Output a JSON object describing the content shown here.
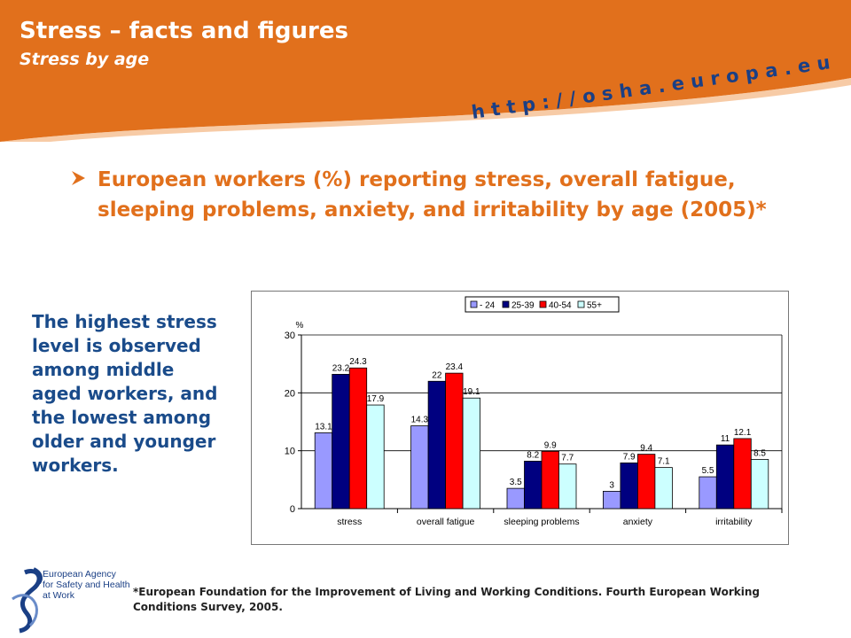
{
  "header": {
    "title": "Stress – facts and figures",
    "subtitle": "Stress by age",
    "url": "http://osha.europa.eu",
    "colors": {
      "band": "#e1701c",
      "url_text": "#1a3f85"
    }
  },
  "bullet": {
    "icon": "arrow-bullet-icon",
    "text": "European workers (%) reporting stress, overall fatigue, sleeping problems, anxiety, and irritability by age (2005)*"
  },
  "side_text": "The highest stress level is observed among middle aged workers, and the lowest among older and younger workers.",
  "footnote": "*European Foundation for the Improvement of Living and Working Conditions. Fourth European Working Conditions Survey, 2005.",
  "logo": {
    "icon": "eu-osha-logo-icon",
    "lines": [
      "European Agency",
      "for Safety and Health",
      "at Work"
    ]
  },
  "chart_data": {
    "type": "bar",
    "ylabel": "%",
    "ylim": [
      0,
      30
    ],
    "yticks": [
      0,
      10,
      20,
      30
    ],
    "grid": true,
    "legend_position": "top-right",
    "categories": [
      "stress",
      "overall fatigue",
      "sleeping problems",
      "anxiety",
      "irritability"
    ],
    "series": [
      {
        "name": "- 24",
        "color": "#9999ff",
        "values": [
          13.1,
          14.3,
          3.5,
          3,
          5.5
        ],
        "labels": [
          "13.1",
          "14.3",
          "3.5",
          "3",
          "5.5"
        ]
      },
      {
        "name": "25-39",
        "color": "#000080",
        "values": [
          23.2,
          22,
          8.2,
          7.9,
          11
        ],
        "labels": [
          "23.2",
          "22",
          "8.2",
          "7.9",
          "11"
        ]
      },
      {
        "name": "40-54",
        "color": "#ff0000",
        "values": [
          24.3,
          23.4,
          9.9,
          9.4,
          12.1
        ],
        "labels": [
          "24.3",
          "23.4",
          "9.9",
          "9.4",
          "12.1"
        ]
      },
      {
        "name": "55+",
        "color": "#ccffff",
        "values": [
          17.9,
          19.1,
          7.7,
          7.1,
          8.5
        ],
        "labels": [
          "17.9",
          "19.1",
          "7.7",
          "7.1",
          "8.5"
        ]
      }
    ]
  }
}
